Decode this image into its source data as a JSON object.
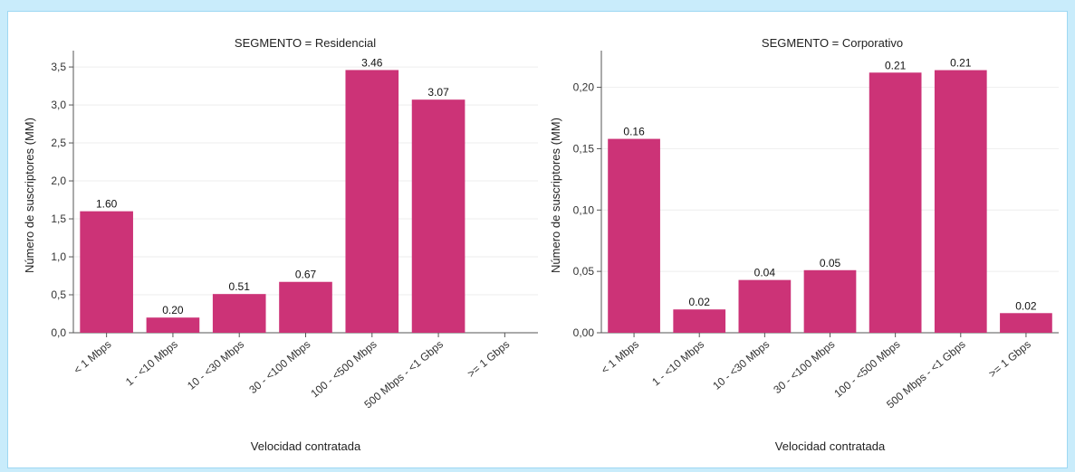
{
  "colors": {
    "bar": "#cc3377",
    "grid": "#eeeeee",
    "axis": "#555555"
  },
  "chart_data": [
    {
      "type": "bar",
      "title": "SEGMENTO = Residencial",
      "xlabel": "Velocidad contratada",
      "ylabel": "Número de suscriptores (MM)",
      "categories": [
        "< 1 Mbps",
        "1 - <10 Mbps",
        "10 - <30 Mbps",
        "30 - <100 Mbps",
        "100 - <500 Mbps",
        "500 Mbps - <1 Gbps",
        ">= 1 Gbps"
      ],
      "values": [
        1.6,
        0.2,
        0.51,
        0.67,
        3.46,
        3.07,
        0
      ],
      "value_labels": [
        "1.60",
        "0.20",
        "0.51",
        "0.67",
        "3.46",
        "3.07",
        ""
      ],
      "ylim": [
        0,
        3.62
      ],
      "yticks": [
        0,
        0.5,
        1.0,
        1.5,
        2.0,
        2.5,
        3.0,
        3.5
      ],
      "ytick_labels": [
        "0,0",
        "0,5",
        "1,0",
        "1,5",
        "2,0",
        "2,5",
        "3,0",
        "3,5"
      ],
      "grid": "horizontal"
    },
    {
      "type": "bar",
      "title": "SEGMENTO = Corporativo",
      "xlabel": "Velocidad contratada",
      "ylabel": "Número de suscriptores (MM)",
      "categories": [
        "< 1 Mbps",
        "1 - <10 Mbps",
        "10 - <30 Mbps",
        "30 - <100 Mbps",
        "100 - <500 Mbps",
        "500 Mbps - <1 Gbps",
        ">= 1 Gbps"
      ],
      "values": [
        0.158,
        0.019,
        0.043,
        0.051,
        0.212,
        0.214,
        0.016
      ],
      "value_labels": [
        "0.16",
        "0.02",
        "0.04",
        "0.05",
        "0.21",
        "0.21",
        "0.02"
      ],
      "ylim": [
        0,
        0.224
      ],
      "yticks": [
        0,
        0.05,
        0.1,
        0.15,
        0.2
      ],
      "ytick_labels": [
        "0,00",
        "0,05",
        "0,10",
        "0,15",
        "0,20"
      ],
      "grid": "horizontal"
    }
  ]
}
